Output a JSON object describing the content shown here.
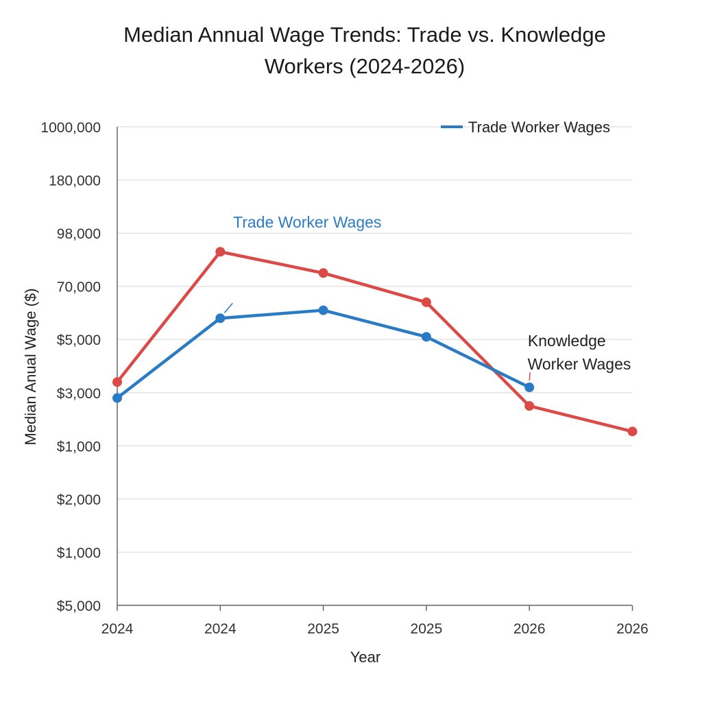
{
  "chart_data": {
    "type": "line",
    "title_line1": "Median Annual Wage Trends: Trade vs. Knowledge",
    "title_line2": "Workers (2024-2026)",
    "xlabel": "Year",
    "ylabel": "Median Anual Wage ($)",
    "categories": [
      "2024",
      "2024",
      "2025",
      "2025",
      "2026",
      "2026"
    ],
    "y_tick_labels": [
      "1000,000",
      "180,000",
      "98,000",
      "70,000",
      "$5,000",
      "$3,000",
      "$1,000",
      "$2,000",
      "$1,000",
      "$5,000"
    ],
    "y_tick_positions": [
      9,
      8,
      7,
      6,
      5,
      4,
      3,
      2,
      1,
      0
    ],
    "ylim": [
      0,
      9
    ],
    "grid": true,
    "legend_position": "top-right",
    "legend": [
      {
        "label": "Trade Worker Wages",
        "color": "#2a7bc6"
      }
    ],
    "series": [
      {
        "color": "#2a7bc6",
        "marker_color": "#2a7bc6",
        "values": [
          3.9,
          5.4,
          5.55,
          5.05,
          4.1,
          null
        ]
      },
      {
        "color": "#dc4a47",
        "marker_color": "#dc4a47",
        "values": [
          4.2,
          6.65,
          6.25,
          5.7,
          3.75,
          3.27
        ]
      }
    ],
    "annotations": [
      {
        "text": "Trade Worker Wages",
        "color": "#2a7bc6",
        "points_to": {
          "series": 0,
          "index": 1
        }
      },
      {
        "text_line1": "Knowledge",
        "text_line2": "Worker Wages",
        "color": "#222222",
        "points_to": {
          "series": 0,
          "index": 4
        }
      }
    ]
  }
}
